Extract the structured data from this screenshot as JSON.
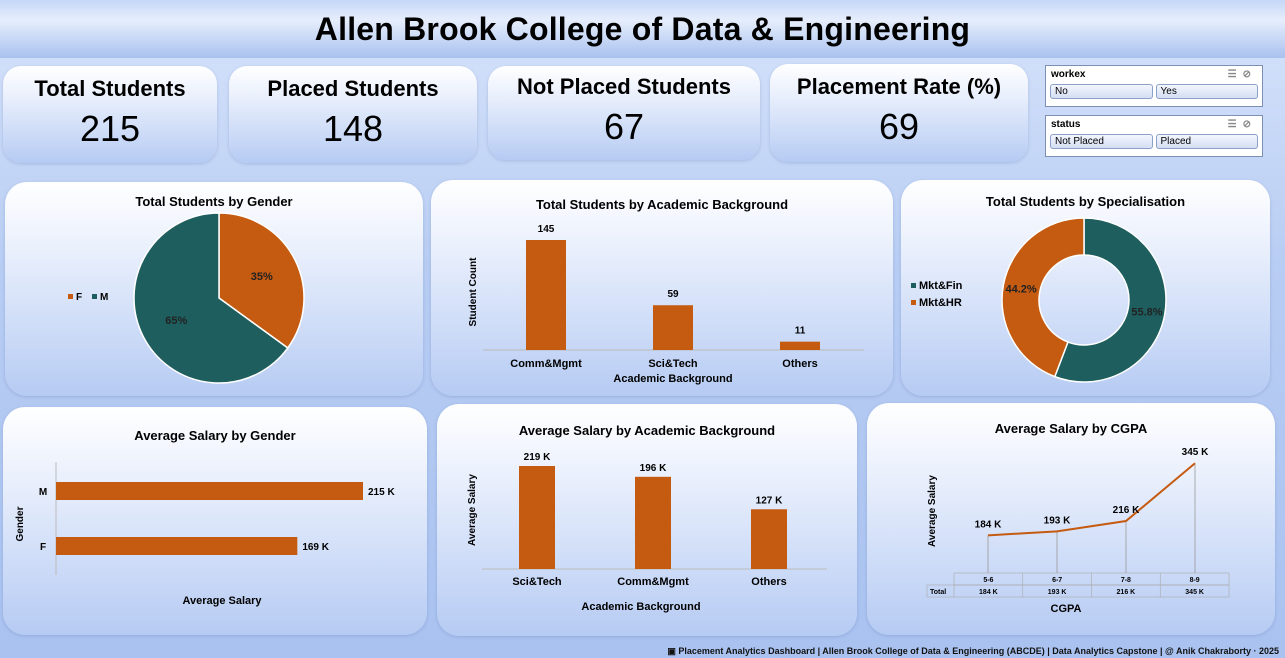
{
  "header": {
    "title": "Allen Brook College of Data & Engineering"
  },
  "kpis": [
    {
      "label": "Total Students",
      "value": "215"
    },
    {
      "label": "Placed Students",
      "value": "148"
    },
    {
      "label": "Not Placed Students",
      "value": "67"
    },
    {
      "label": "Placement Rate (%)",
      "value": "69"
    }
  ],
  "slicers": {
    "workex": {
      "title": "workex",
      "options": [
        "No",
        "Yes"
      ]
    },
    "status": {
      "title": "status",
      "options": [
        "Not Placed",
        "Placed"
      ]
    }
  },
  "colors": {
    "orange": "#c55a11",
    "teal": "#1f5e5e"
  },
  "chart_data": [
    {
      "id": "gender",
      "type": "pie",
      "title": "Total Students by Gender",
      "categories": [
        "F",
        "M"
      ],
      "values": [
        35,
        65
      ],
      "labels": [
        "35%",
        "65%"
      ],
      "legend": "left"
    },
    {
      "id": "academic",
      "type": "bar",
      "title": "Total Students by Academic Background",
      "categories": [
        "Comm&Mgmt",
        "Sci&Tech",
        "Others"
      ],
      "values": [
        145,
        59,
        11
      ],
      "labels": [
        "145",
        "59",
        "11"
      ],
      "xlabel": "Academic Background",
      "ylabel": "Student Count"
    },
    {
      "id": "specialisation",
      "type": "pie",
      "title": "Total Students by Specialisation",
      "categories": [
        "Mkt&Fin",
        "Mkt&HR"
      ],
      "values": [
        55.8,
        44.2
      ],
      "labels": [
        "55.8%",
        "44.2%"
      ],
      "legend": "left"
    },
    {
      "id": "salary_gender",
      "type": "bar",
      "title": "Average Salary by Gender",
      "categories": [
        "M",
        "F"
      ],
      "values": [
        215,
        169
      ],
      "labels": [
        "215 K",
        "169 K"
      ],
      "xlabel": "Average Salary",
      "ylabel": "Gender"
    },
    {
      "id": "salary_academic",
      "type": "bar",
      "title": "Average Salary by Academic Background",
      "categories": [
        "Sci&Tech",
        "Comm&Mgmt",
        "Others"
      ],
      "values": [
        219,
        196,
        127
      ],
      "labels": [
        "219 K",
        "196 K",
        "127 K"
      ],
      "xlabel": "Academic Background",
      "ylabel": "Average Salary"
    },
    {
      "id": "salary_cgpa",
      "type": "line",
      "title": "Average Salary by CGPA",
      "categories": [
        "5-6",
        "6-7",
        "7-8",
        "8-9"
      ],
      "values": [
        184,
        193,
        216,
        345
      ],
      "labels": [
        "184 K",
        "193 K",
        "216 K",
        "345 K"
      ],
      "table_row_label": "Total",
      "xlabel": "CGPA",
      "ylabel": "Average Salary"
    }
  ],
  "footer": {
    "text": "Placement Analytics Dashboard | Allen Brook College of Data & Engineering (ABCDE) | Data Analytics Capstone | @ Anik Chakraborty · 2025",
    "icon": "dashboard-icon"
  }
}
